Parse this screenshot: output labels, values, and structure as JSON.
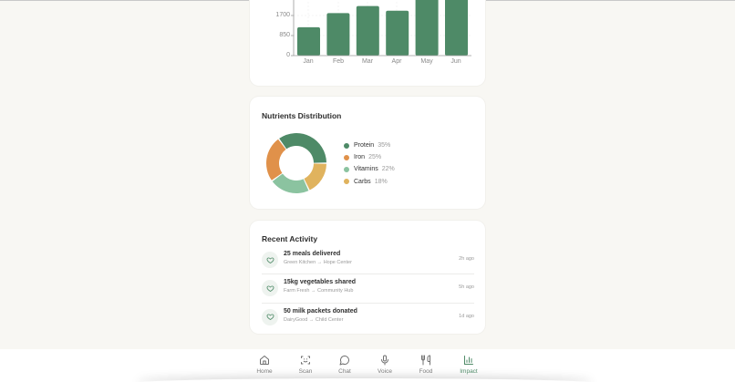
{
  "colors": {
    "accent": "#4e8a67",
    "bar": "#4e8a67",
    "background": "#f8f7f3",
    "card": "#ffffff"
  },
  "chart_data": {
    "type": "bar",
    "title": "",
    "categories": [
      "Jan",
      "Feb",
      "Mar",
      "Apr",
      "May",
      "Jun"
    ],
    "values": [
      1200,
      1800,
      2100,
      1900,
      2450,
      2450
    ],
    "yticks": [
      "0",
      "850",
      "1700"
    ],
    "ylim": [
      0,
      2550
    ],
    "xlabel": "",
    "ylabel": "",
    "grid": true,
    "note": "May and Jun bars extend beyond visible top edge"
  },
  "nutrients": {
    "title": "Nutrients Distribution",
    "items": [
      {
        "label": "Protein",
        "pct": "35%",
        "value": 35,
        "color": "#4e8a67"
      },
      {
        "label": "Iron",
        "pct": "25%",
        "value": 25,
        "color": "#e0914a"
      },
      {
        "label": "Vitamins",
        "pct": "22%",
        "value": 22,
        "color": "#8bc3a0"
      },
      {
        "label": "Carbs",
        "pct": "18%",
        "value": 18,
        "color": "#e0b35e"
      }
    ]
  },
  "activity": {
    "title": "Recent Activity",
    "items": [
      {
        "title": "25 meals delivered",
        "sub": "Green Kitchen → Hope Center",
        "time": "2h ago",
        "icon": "heart-icon"
      },
      {
        "title": "15kg vegetables shared",
        "sub": "Farm Fresh → Community Hub",
        "time": "5h ago",
        "icon": "heart-icon"
      },
      {
        "title": "50 milk packets donated",
        "sub": "DairyGood → Child Center",
        "time": "1d ago",
        "icon": "heart-icon"
      }
    ]
  },
  "nav": {
    "items": [
      {
        "label": "Home",
        "icon": "home-icon"
      },
      {
        "label": "Scan",
        "icon": "scan-icon"
      },
      {
        "label": "Chat",
        "icon": "chat-icon"
      },
      {
        "label": "Voice",
        "icon": "microphone-icon"
      },
      {
        "label": "Food",
        "icon": "utensils-icon"
      },
      {
        "label": "Impact",
        "icon": "bar-chart-icon",
        "active": true
      }
    ]
  }
}
